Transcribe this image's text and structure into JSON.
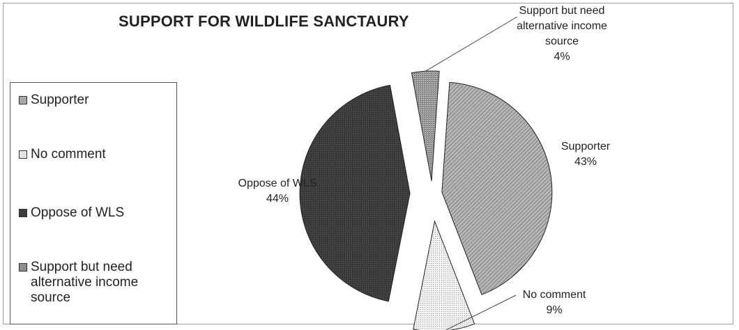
{
  "chart_data": {
    "type": "pie",
    "title": "SUPPORT FOR WILDLIFE SANCTAURY",
    "slices": [
      {
        "name": "Supporter",
        "value": 43,
        "label_lines": [
          "Supporter",
          "43%"
        ],
        "color": "#a9a9a9"
      },
      {
        "name": "No comment",
        "value": 9,
        "label_lines": [
          "No comment",
          "9%"
        ],
        "color": "#e4e4e4"
      },
      {
        "name": "Oppose of WLS",
        "value": 44,
        "label_lines": [
          "Oppose of WLS",
          "44%"
        ],
        "color": "#3d3d3d"
      },
      {
        "name": "Support but need alternative income source",
        "value": 4,
        "label_lines": [
          "Support but need",
          "alternative income",
          "source",
          "4%"
        ],
        "color": "#8f8f8f"
      }
    ],
    "legend_position": "left",
    "exploded": true
  },
  "legend": {
    "items": [
      {
        "label": "Supporter",
        "color": "#a9a9a9"
      },
      {
        "label": "No comment",
        "color": "#e4e4e4"
      },
      {
        "label": "Oppose of WLS",
        "color": "#3d3d3d"
      },
      {
        "label": "Support but need alternative income source",
        "color": "#8f8f8f"
      }
    ]
  }
}
